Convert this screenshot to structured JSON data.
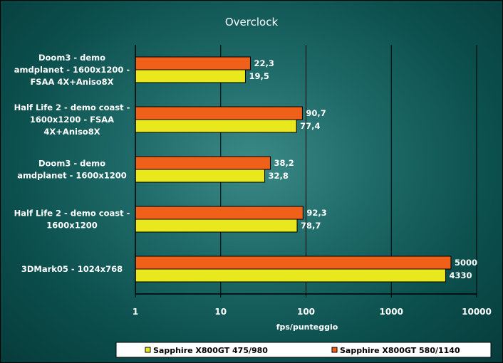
{
  "chart_data": {
    "type": "bar",
    "orientation": "horizontal",
    "title": "Overclock",
    "xlabel": "fps/punteggio",
    "ylabel": "",
    "xscale": "log",
    "xlim": [
      1,
      10000
    ],
    "xticks": [
      "1",
      "10",
      "100",
      "1000",
      "10000"
    ],
    "categories": [
      [
        "Doom3 - demo",
        "amdplanet - 1600x1200 -",
        "FSAA 4X+Aniso8X"
      ],
      [
        "Half Life 2 - demo coast -",
        "1600x1200 - FSAA",
        "4X+Aniso8X"
      ],
      [
        "Doom3 - demo",
        "amdplanet - 1600x1200"
      ],
      [
        "Half Life 2 - demo coast -",
        "1600x1200"
      ],
      [
        "3DMark05 - 1024x768"
      ]
    ],
    "series": [
      {
        "name": "Sapphire X800GT 580/1140",
        "color": "#f06018",
        "values": [
          22.3,
          90.7,
          38.2,
          92.3,
          5000
        ],
        "labels": [
          "22,3",
          "90,7",
          "38,2",
          "92,3",
          "5000"
        ]
      },
      {
        "name": "Sapphire X800GT 475/980",
        "color": "#e8e81c",
        "values": [
          19.5,
          77.4,
          32.8,
          78.7,
          4330
        ],
        "labels": [
          "19,5",
          "77,4",
          "32,8",
          "78,7",
          "4330"
        ]
      }
    ],
    "legend_order": [
      "Sapphire X800GT 475/980",
      "Sapphire X800GT 580/1140"
    ],
    "legend_position": "bottom",
    "grid": true
  }
}
